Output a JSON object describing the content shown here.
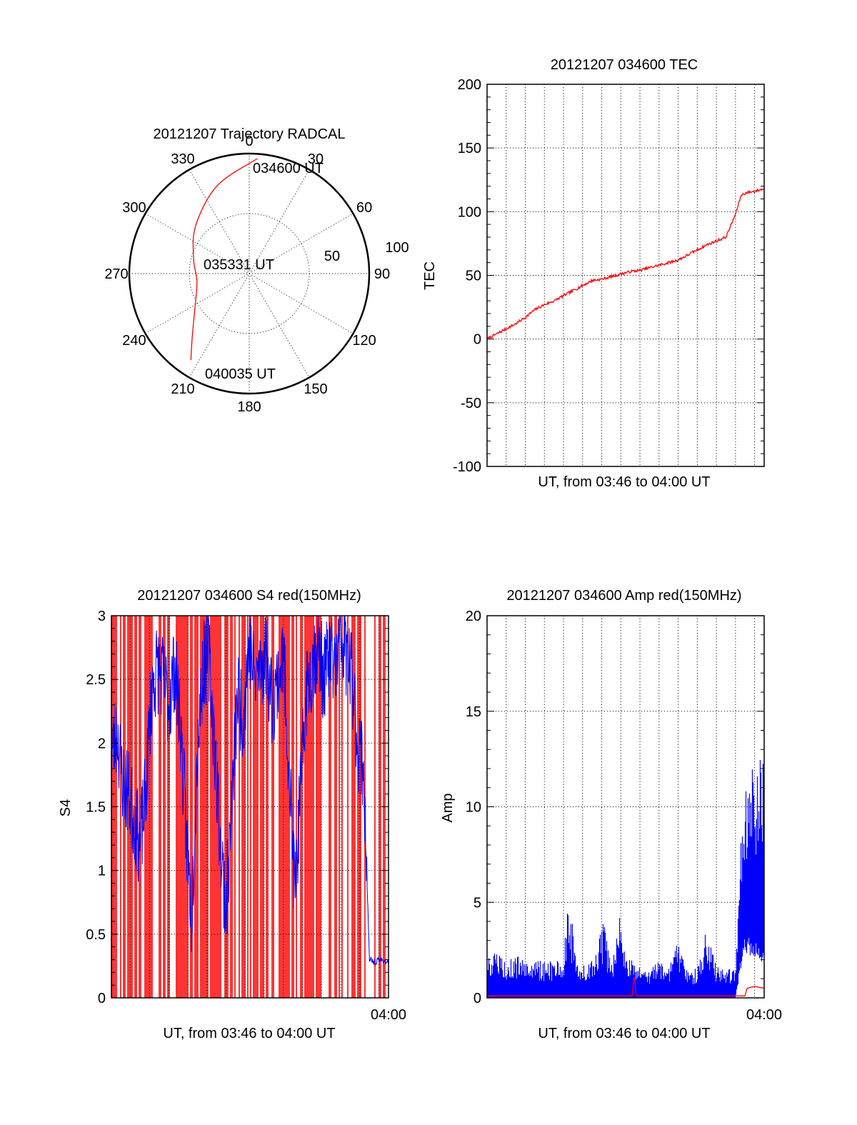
{
  "chart_data": [
    {
      "id": "trajectory",
      "type": "polar",
      "title": "20121207 Trajectory RADCAL",
      "angle_labels": [
        "0",
        "30",
        "60",
        "90",
        "120",
        "150",
        "180",
        "210",
        "240",
        "270",
        "300",
        "330"
      ],
      "radial_labels": [
        "50",
        "100"
      ],
      "radial_values": [
        50,
        100
      ],
      "r_max": 100,
      "start_label": "034600 UT",
      "mid_label": "035331 UT",
      "end_label": "040035 UT",
      "track": {
        "color": "#ff0000",
        "points": [
          {
            "az": 4,
            "r": 96
          },
          {
            "az": 340,
            "r": 78
          },
          {
            "az": 312,
            "r": 60
          },
          {
            "az": 285,
            "r": 48
          },
          {
            "az": 262,
            "r": 44
          },
          {
            "az": 240,
            "r": 52
          },
          {
            "az": 222,
            "r": 71
          },
          {
            "az": 214,
            "r": 87
          }
        ]
      },
      "grid": true
    },
    {
      "id": "tec",
      "type": "line",
      "title": "20121207 034600 TEC",
      "xlabel": "UT, from 03:46 to 04:00 UT",
      "ylabel": "TEC",
      "ylim": [
        -100,
        200
      ],
      "yticks": [
        "200",
        "150",
        "100",
        "50",
        "0",
        "-50",
        "-100"
      ],
      "xlim_minutes": [
        0,
        14.5
      ],
      "color": "#ff0000",
      "series": [
        {
          "x": [
            0,
            0.5,
            1,
            1.5,
            2,
            2.5,
            3,
            3.5,
            4,
            4.5,
            5,
            5.5,
            6,
            6.5,
            7,
            7.5,
            8,
            8.5,
            9,
            9.5,
            10,
            10.5,
            11,
            11.5,
            12,
            12.5,
            13,
            13.3,
            13.6,
            14,
            14.5
          ],
          "values": [
            0,
            4,
            8,
            12,
            17,
            23,
            27,
            30,
            34,
            38,
            42,
            46,
            47,
            49,
            51,
            53,
            54,
            56,
            58,
            60,
            62,
            66,
            70,
            74,
            77,
            80,
            98,
            113,
            115,
            116,
            118
          ]
        }
      ],
      "grid": true
    },
    {
      "id": "s4",
      "type": "line",
      "title": "20121207 034600 S4 red(150MHz)",
      "xlabel": "UT, from 03:46 to 04:00 UT",
      "ylabel": "S4",
      "ylim": [
        0,
        3
      ],
      "yticks": [
        "3",
        "2.5",
        "2",
        "1.5",
        "1",
        "0.5",
        "0"
      ],
      "xtick_label": "04:00",
      "xtick_minute": 14,
      "xlim_minutes": [
        0,
        14.5
      ],
      "series": [
        {
          "name": "",
          "color": "#ff0000",
          "render": "spikes",
          "spike_density": 0.62,
          "gap_minutes": [
            13.3,
            13.7
          ]
        },
        {
          "name": "",
          "color": "#0000ff",
          "x": [
            0,
            0.3,
            0.6,
            0.9,
            1.2,
            1.5,
            1.8,
            2.1,
            2.4,
            2.7,
            3.0,
            3.3,
            3.6,
            3.9,
            4.2,
            4.5,
            4.8,
            5.1,
            5.4,
            5.7,
            6.0,
            6.3,
            6.6,
            6.9,
            7.2,
            7.5,
            7.8,
            8.1,
            8.4,
            8.7,
            9.0,
            9.3,
            9.6,
            9.9,
            10.2,
            10.5,
            10.8,
            11.1,
            11.4,
            11.7,
            12.0,
            12.3,
            12.6,
            12.9,
            13.2,
            13.5,
            13.8,
            14.1,
            14.5
          ],
          "values": [
            1.9,
            2.1,
            1.7,
            1.6,
            1.4,
            1.2,
            1.6,
            2.4,
            2.6,
            2.5,
            2.3,
            2.6,
            2.2,
            1.3,
            0.65,
            2.0,
            2.6,
            2.7,
            2.0,
            1.2,
            0.7,
            1.5,
            2.4,
            2.2,
            2.8,
            2.5,
            2.6,
            2.7,
            2.3,
            2.5,
            2.7,
            1.8,
            0.8,
            1.6,
            2.4,
            2.6,
            2.8,
            2.5,
            2.7,
            2.6,
            2.8,
            2.7,
            2.5,
            2.0,
            1.8,
            0.3,
            0.28,
            0.3,
            0.28
          ],
          "noise": 0.18
        }
      ],
      "grid": true
    },
    {
      "id": "amp",
      "type": "line",
      "title": "20121207 034600 Amp red(150MHz)",
      "xlabel": "UT, from 03:46 to 04:00 UT",
      "ylabel": "Amp",
      "ylim": [
        0,
        20
      ],
      "yticks": [
        "20",
        "15",
        "10",
        "5",
        "0"
      ],
      "xtick_label": "04:00",
      "xtick_minute": 14,
      "xlim_minutes": [
        0,
        14.5
      ],
      "series": [
        {
          "name": "",
          "color": "#ff0000",
          "x": [
            0,
            7.6,
            7.7,
            7.8,
            13.5,
            13.6,
            14,
            14.5
          ],
          "values": [
            0.1,
            0.1,
            1.2,
            0.1,
            0.1,
            0.5,
            0.6,
            0.5
          ]
        },
        {
          "name": "",
          "color": "#0000ff",
          "render": "envelope",
          "x": [
            0,
            1,
            2,
            3,
            4,
            4.2,
            4.5,
            4.8,
            5.2,
            5.7,
            6.1,
            6.5,
            6.9,
            7.3,
            7.7,
            8.1,
            8.5,
            9,
            9.5,
            10,
            10.5,
            11,
            11.5,
            12,
            12.5,
            13,
            13.4,
            13.6,
            14,
            14.5
          ],
          "upper": [
            2.5,
            2.1,
            2.2,
            1.9,
            2.0,
            4.7,
            3.8,
            1.9,
            1.6,
            2.6,
            4.0,
            1.7,
            4.6,
            2.5,
            1.7,
            1.6,
            1.5,
            1.9,
            1.6,
            3.0,
            1.6,
            1.5,
            3.7,
            1.6,
            1.7,
            1.6,
            12.0,
            11.5,
            12.5,
            13.0
          ],
          "lower": [
            0,
            0,
            0,
            0,
            0,
            0,
            0,
            0,
            0,
            0,
            0,
            0,
            0,
            0,
            0,
            0,
            0,
            0,
            0,
            0,
            0,
            0,
            0,
            0,
            0,
            0,
            3.0,
            3.2,
            3.0,
            2.5
          ]
        }
      ],
      "grid": true
    }
  ]
}
